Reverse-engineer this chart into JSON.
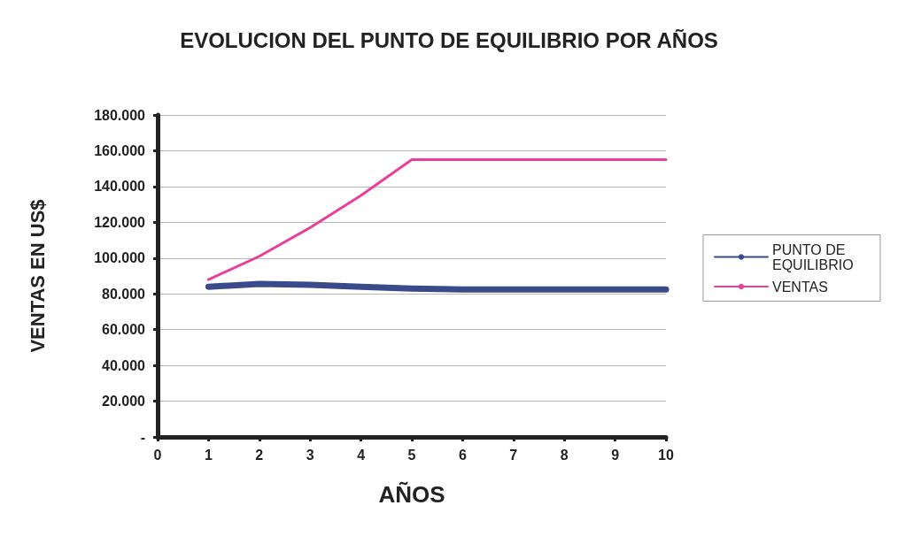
{
  "chart_data": {
    "type": "line",
    "title": "EVOLUCION DEL PUNTO DE EQUILIBRIO POR AÑOS",
    "xlabel": "AÑOS",
    "ylabel": "VENTAS EN US$",
    "x": [
      1,
      2,
      3,
      4,
      5,
      6,
      7,
      8,
      9,
      10
    ],
    "series": [
      {
        "name": "PUNTO DE EQUILIBRIO",
        "color": "#3a4a8a",
        "values": [
          84000,
          85500,
          85000,
          84000,
          83000,
          82500,
          82500,
          82500,
          82500,
          82500
        ]
      },
      {
        "name": "VENTAS",
        "color": "#e8409a",
        "values": [
          88000,
          101000,
          117000,
          135000,
          155000,
          155000,
          155000,
          155000,
          155000,
          155000
        ]
      }
    ],
    "xlim": [
      0,
      10
    ],
    "xticks": [
      0,
      1,
      2,
      3,
      4,
      5,
      6,
      7,
      8,
      9,
      10
    ],
    "ylim": [
      0,
      180000
    ],
    "yticks": [
      {
        "value": 0,
        "label": "-"
      },
      {
        "value": 20000,
        "label": "20.000"
      },
      {
        "value": 40000,
        "label": "40.000"
      },
      {
        "value": 60000,
        "label": "60.000"
      },
      {
        "value": 80000,
        "label": "80.000"
      },
      {
        "value": 100000,
        "label": "100.000"
      },
      {
        "value": 120000,
        "label": "120.000"
      },
      {
        "value": 140000,
        "label": "140.000"
      },
      {
        "value": 160000,
        "label": "160.000"
      },
      {
        "value": 180000,
        "label": "180.000"
      }
    ],
    "grid": "y",
    "legend": "right",
    "marker": "none",
    "line_style": "solid"
  }
}
